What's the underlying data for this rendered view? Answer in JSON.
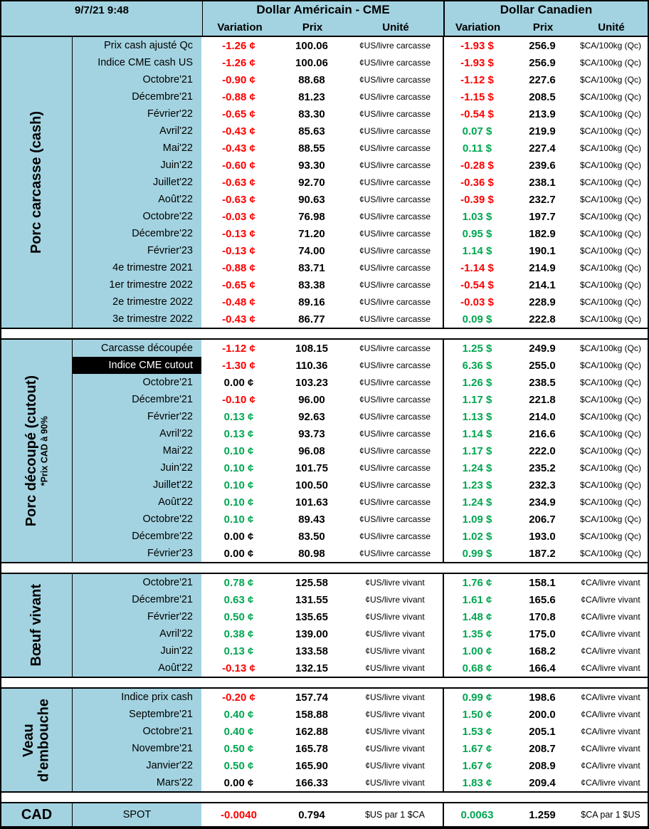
{
  "header": {
    "timestamp": "9/7/21 9:48",
    "usd_title": "Dollar Américain - CME",
    "cad_title": "Dollar Canadien",
    "subcolumns": [
      "Variation",
      "Prix",
      "Unité"
    ]
  },
  "colors": {
    "panel_blue": "#A3D3E1",
    "negative": "#FF0000",
    "positive": "#00A650",
    "highlight_bg": "#000000",
    "highlight_fg": "#FFFFFF"
  },
  "sections": [
    {
      "id": "porc-carcasse-cash",
      "label": "Porc carcasse (cash)",
      "sublabel": "",
      "horizontal": false,
      "highlight_rows": [],
      "rows": [
        [
          "Prix cash ajusté Qc",
          "-1.26 ¢",
          "100.06",
          "¢US/livre carcasse",
          "-1.93 $",
          "256.9",
          "$CA/100kg (Qc)"
        ],
        [
          "Indice CME cash US",
          "-1.26 ¢",
          "100.06",
          "¢US/livre carcasse",
          "-1.93 $",
          "256.9",
          "$CA/100kg (Qc)"
        ],
        [
          "Octobre'21",
          "-0.90 ¢",
          "88.68",
          "¢US/livre carcasse",
          "-1.12 $",
          "227.6",
          "$CA/100kg (Qc)"
        ],
        [
          "Décembre'21",
          "-0.88 ¢",
          "81.23",
          "¢US/livre carcasse",
          "-1.15 $",
          "208.5",
          "$CA/100kg (Qc)"
        ],
        [
          "Février'22",
          "-0.65 ¢",
          "83.30",
          "¢US/livre carcasse",
          "-0.54 $",
          "213.9",
          "$CA/100kg (Qc)"
        ],
        [
          "Avril'22",
          "-0.43 ¢",
          "85.63",
          "¢US/livre carcasse",
          "0.07 $",
          "219.9",
          "$CA/100kg (Qc)"
        ],
        [
          "Mai'22",
          "-0.43 ¢",
          "88.55",
          "¢US/livre carcasse",
          "0.11 $",
          "227.4",
          "$CA/100kg (Qc)"
        ],
        [
          "Juin'22",
          "-0.60 ¢",
          "93.30",
          "¢US/livre carcasse",
          "-0.28 $",
          "239.6",
          "$CA/100kg (Qc)"
        ],
        [
          "Juillet'22",
          "-0.63 ¢",
          "92.70",
          "¢US/livre carcasse",
          "-0.36 $",
          "238.1",
          "$CA/100kg (Qc)"
        ],
        [
          "Août'22",
          "-0.63 ¢",
          "90.63",
          "¢US/livre carcasse",
          "-0.39 $",
          "232.7",
          "$CA/100kg (Qc)"
        ],
        [
          "Octobre'22",
          "-0.03 ¢",
          "76.98",
          "¢US/livre carcasse",
          "1.03 $",
          "197.7",
          "$CA/100kg (Qc)"
        ],
        [
          "Décembre'22",
          "-0.13 ¢",
          "71.20",
          "¢US/livre carcasse",
          "0.95 $",
          "182.9",
          "$CA/100kg (Qc)"
        ],
        [
          "Février'23",
          "-0.13 ¢",
          "74.00",
          "¢US/livre carcasse",
          "1.14 $",
          "190.1",
          "$CA/100kg (Qc)"
        ],
        [
          "4e trimestre 2021",
          "-0.88 ¢",
          "83.71",
          "¢US/livre carcasse",
          "-1.14 $",
          "214.9",
          "$CA/100kg (Qc)"
        ],
        [
          "1er trimestre 2022",
          "-0.65 ¢",
          "83.38",
          "¢US/livre carcasse",
          "-0.54 $",
          "214.1",
          "$CA/100kg (Qc)"
        ],
        [
          "2e trimestre 2022",
          "-0.48 ¢",
          "89.16",
          "¢US/livre carcasse",
          "-0.03 $",
          "228.9",
          "$CA/100kg (Qc)"
        ],
        [
          "3e trimestre 2022",
          "-0.43 ¢",
          "86.77",
          "¢US/livre carcasse",
          "0.09 $",
          "222.8",
          "$CA/100kg (Qc)"
        ]
      ]
    },
    {
      "id": "porc-decoupe-cutout",
      "label": "Porc découpé (cutout)",
      "sublabel": "*Prix CAD à 90%",
      "horizontal": false,
      "highlight_rows": [
        1
      ],
      "rows": [
        [
          "Carcasse découpée",
          "-1.12 ¢",
          "108.15",
          "¢US/livre carcasse",
          "1.25 $",
          "249.9",
          "$CA/100kg (Qc)"
        ],
        [
          "Indice CME cutout",
          "-1.30 ¢",
          "110.36",
          "¢US/livre carcasse",
          "6.36 $",
          "255.0",
          "$CA/100kg (Qc)"
        ],
        [
          "Octobre'21",
          "0.00 ¢",
          "103.23",
          "¢US/livre carcasse",
          "1.26 $",
          "238.5",
          "$CA/100kg (Qc)"
        ],
        [
          "Décembre'21",
          "-0.10 ¢",
          "96.00",
          "¢US/livre carcasse",
          "1.17 $",
          "221.8",
          "$CA/100kg (Qc)"
        ],
        [
          "Février'22",
          "0.13 ¢",
          "92.63",
          "¢US/livre carcasse",
          "1.13 $",
          "214.0",
          "$CA/100kg (Qc)"
        ],
        [
          "Avril'22",
          "0.13 ¢",
          "93.73",
          "¢US/livre carcasse",
          "1.14 $",
          "216.6",
          "$CA/100kg (Qc)"
        ],
        [
          "Mai'22",
          "0.10 ¢",
          "96.08",
          "¢US/livre carcasse",
          "1.17 $",
          "222.0",
          "$CA/100kg (Qc)"
        ],
        [
          "Juin'22",
          "0.10 ¢",
          "101.75",
          "¢US/livre carcasse",
          "1.24 $",
          "235.2",
          "$CA/100kg (Qc)"
        ],
        [
          "Juillet'22",
          "0.10 ¢",
          "100.50",
          "¢US/livre carcasse",
          "1.23 $",
          "232.3",
          "$CA/100kg (Qc)"
        ],
        [
          "Août'22",
          "0.10 ¢",
          "101.63",
          "¢US/livre carcasse",
          "1.24 $",
          "234.9",
          "$CA/100kg (Qc)"
        ],
        [
          "Octobre'22",
          "0.10 ¢",
          "89.43",
          "¢US/livre carcasse",
          "1.09 $",
          "206.7",
          "$CA/100kg (Qc)"
        ],
        [
          "Décembre'22",
          "0.00 ¢",
          "83.50",
          "¢US/livre carcasse",
          "1.02 $",
          "193.0",
          "$CA/100kg (Qc)"
        ],
        [
          "Février'23",
          "0.00 ¢",
          "80.98",
          "¢US/livre carcasse",
          "0.99 $",
          "187.2",
          "$CA/100kg (Qc)"
        ]
      ]
    },
    {
      "id": "boeuf-vivant",
      "label": "Bœuf vivant",
      "sublabel": "",
      "horizontal": false,
      "highlight_rows": [],
      "rows": [
        [
          "Octobre'21",
          "0.78 ¢",
          "125.58",
          "¢US/livre vivant",
          "1.76 ¢",
          "158.1",
          "¢CA/livre vivant"
        ],
        [
          "Décembre'21",
          "0.63 ¢",
          "131.55",
          "¢US/livre vivant",
          "1.61 ¢",
          "165.6",
          "¢CA/livre vivant"
        ],
        [
          "Février'22",
          "0.50 ¢",
          "135.65",
          "¢US/livre vivant",
          "1.48 ¢",
          "170.8",
          "¢CA/livre vivant"
        ],
        [
          "Avril'22",
          "0.38 ¢",
          "139.00",
          "¢US/livre vivant",
          "1.35 ¢",
          "175.0",
          "¢CA/livre vivant"
        ],
        [
          "Juin'22",
          "0.13 ¢",
          "133.58",
          "¢US/livre vivant",
          "1.00 ¢",
          "168.2",
          "¢CA/livre vivant"
        ],
        [
          "Août'22",
          "-0.13 ¢",
          "132.15",
          "¢US/livre vivant",
          "0.68 ¢",
          "166.4",
          "¢CA/livre vivant"
        ]
      ]
    },
    {
      "id": "veau-embouche",
      "label": "Veau\nd'embouche",
      "sublabel": "",
      "horizontal": false,
      "highlight_rows": [],
      "rows": [
        [
          "Indice prix cash",
          "-0.20 ¢",
          "157.74",
          "¢US/livre vivant",
          "0.99 ¢",
          "198.6",
          "¢CA/livre vivant"
        ],
        [
          "Septembre'21",
          "0.40 ¢",
          "158.88",
          "¢US/livre vivant",
          "1.50 ¢",
          "200.0",
          "¢CA/livre vivant"
        ],
        [
          "Octobre'21",
          "0.40 ¢",
          "162.88",
          "¢US/livre vivant",
          "1.53 ¢",
          "205.1",
          "¢CA/livre vivant"
        ],
        [
          "Novembre'21",
          "0.50 ¢",
          "165.78",
          "¢US/livre vivant",
          "1.67 ¢",
          "208.7",
          "¢CA/livre vivant"
        ],
        [
          "Janvier'22",
          "0.50 ¢",
          "165.90",
          "¢US/livre vivant",
          "1.67 ¢",
          "208.9",
          "¢CA/livre vivant"
        ],
        [
          "Mars'22",
          "0.00 ¢",
          "166.33",
          "¢US/livre vivant",
          "1.83 ¢",
          "209.4",
          "¢CA/livre vivant"
        ]
      ]
    },
    {
      "id": "cad",
      "label": "CAD",
      "sublabel": "",
      "horizontal": true,
      "highlight_rows": [],
      "rows": [
        [
          "SPOT",
          "-0.0040",
          "0.794",
          "$US par 1 $CA",
          "0.0063",
          "1.259",
          "$CA par 1 $US"
        ]
      ]
    }
  ]
}
